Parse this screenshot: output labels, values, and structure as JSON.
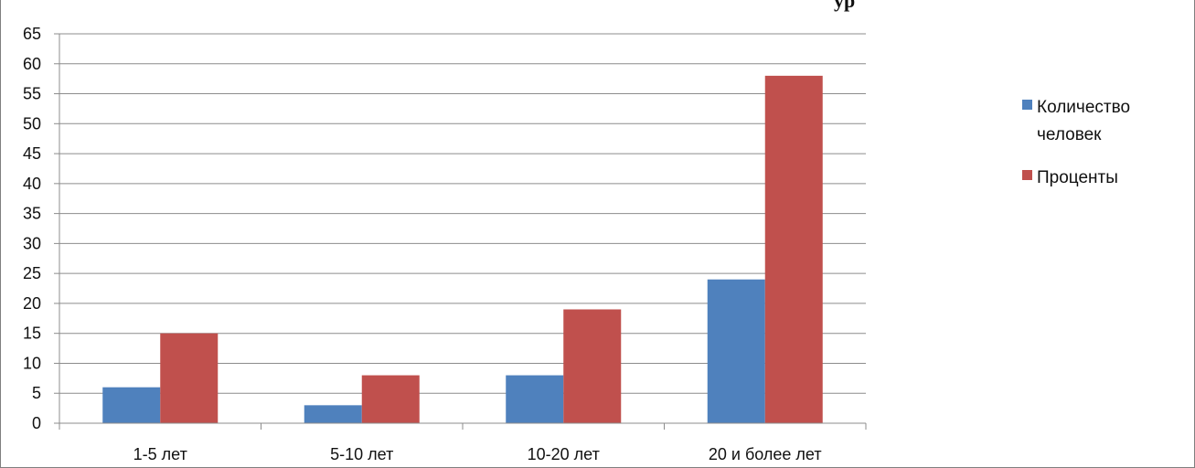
{
  "chart_data": {
    "type": "bar",
    "title_fragment": "ур",
    "categories": [
      "1-5 лет",
      "5-10 лет",
      "10-20 лет",
      "20 и более лет"
    ],
    "series": [
      {
        "name": "Количество человек",
        "legend_lines": [
          "Количество",
          "человек"
        ],
        "color": "#4f81bd",
        "values": [
          6,
          3,
          8,
          24
        ]
      },
      {
        "name": "Проценты",
        "legend_lines": [
          "Проценты"
        ],
        "color": "#c0504d",
        "values": [
          15,
          8,
          19,
          58
        ]
      }
    ],
    "ylim": [
      0,
      65
    ],
    "yticks": [
      "0",
      "5",
      "10",
      "15",
      "20",
      "25",
      "30",
      "35",
      "40",
      "45",
      "50",
      "55",
      "60",
      "65"
    ],
    "grid": true,
    "legend_position": "right"
  }
}
